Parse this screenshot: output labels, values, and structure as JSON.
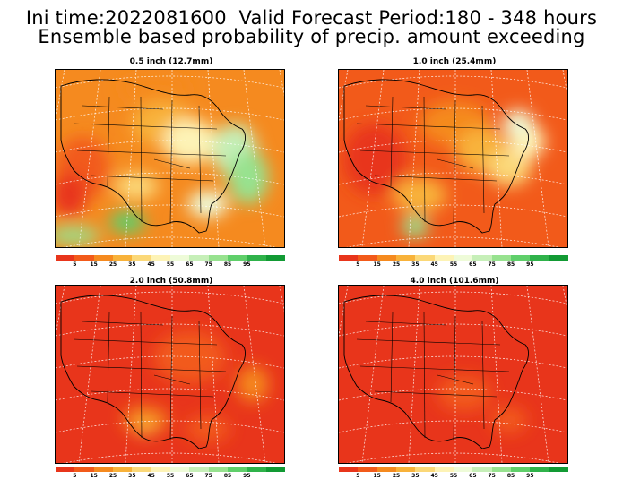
{
  "header": {
    "line1": "Ini time:2022081600  Valid Forecast Period:180 - 348 hours",
    "line2": "Ensemble based probability of precip. amount exceeding"
  },
  "panels": [
    {
      "title": "0.5 inch (12.7mm)",
      "scheme": "p05"
    },
    {
      "title": "1.0 inch (25.4mm)",
      "scheme": "p10"
    },
    {
      "title": "2.0 inch (50.8mm)",
      "scheme": "p20"
    },
    {
      "title": "4.0 inch (101.6mm)",
      "scheme": "p40"
    }
  ],
  "colorbar": {
    "colors": [
      "#e8351b",
      "#f25a1a",
      "#f58a1f",
      "#f8b23a",
      "#fbd878",
      "#fdf3b6",
      "#eefbd8",
      "#c6efb8",
      "#97e28f",
      "#5fcf6a",
      "#2fb24a",
      "#129a34"
    ],
    "labels": [
      "5",
      "15",
      "25",
      "35",
      "45",
      "55",
      "65",
      "75",
      "85",
      "95"
    ]
  }
}
